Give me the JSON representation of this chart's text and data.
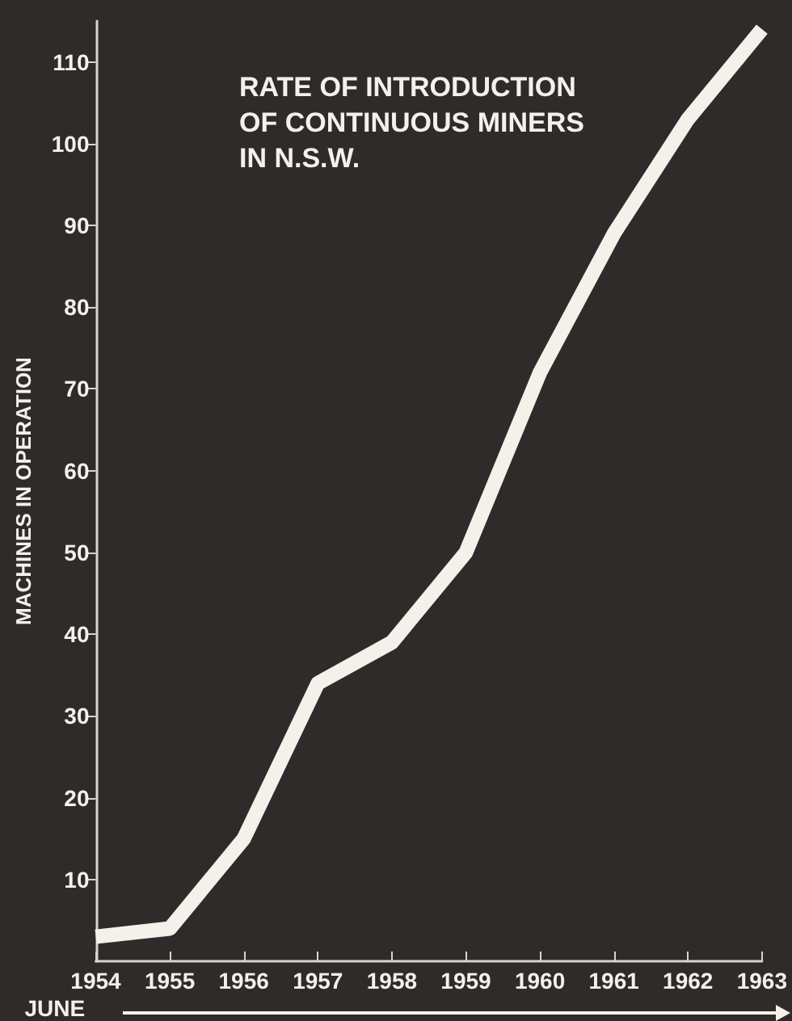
{
  "chart_data": {
    "type": "line",
    "title": "RATE OF INTRODUCTION\nOF CONTINUOUS MINERS\nIN N.S.W.",
    "ylabel": "MACHINES IN OPERATION",
    "xlabel": "JUNE",
    "x": [
      1954,
      1955,
      1956,
      1957,
      1958,
      1959,
      1960,
      1961,
      1962,
      1963
    ],
    "series": [
      {
        "color": "#f4f1ea",
        "values": [
          3,
          4,
          15,
          34,
          39,
          50,
          72,
          89,
          103,
          114
        ]
      }
    ],
    "xlim": [
      1954,
      1963
    ],
    "xticks": [
      1954,
      1955,
      1956,
      1957,
      1958,
      1959,
      1960,
      1961,
      1962,
      1963
    ],
    "ylim": [
      0,
      115
    ],
    "yticks": [
      10,
      20,
      30,
      40,
      50,
      60,
      70,
      80,
      90,
      100,
      110
    ],
    "marker": "none",
    "line_style": "solid"
  }
}
